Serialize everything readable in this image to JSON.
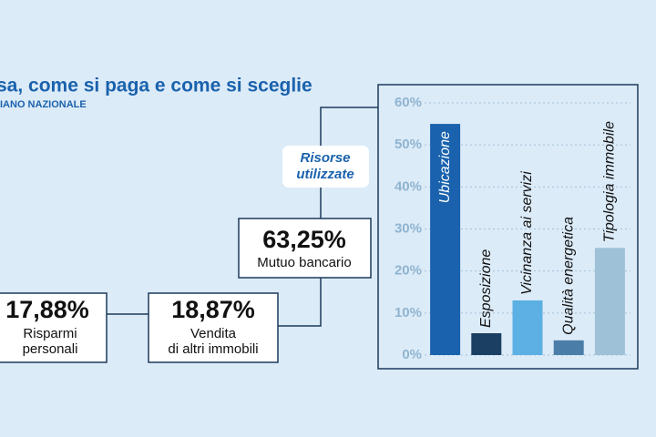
{
  "header": {
    "title": "sa, come si paga e come si sceglie",
    "subtitle": "IANO NAZIONALE"
  },
  "flow": {
    "badge": [
      "Risorse",
      "utilizzate"
    ],
    "boxes": [
      {
        "percent": "17,88%",
        "label": [
          "Risparmi",
          "personali"
        ]
      },
      {
        "percent": "18,87%",
        "label": [
          "Vendita",
          "di altri immobili"
        ]
      },
      {
        "percent": "63,25%",
        "label": [
          "Mutuo bancario"
        ]
      }
    ]
  },
  "chart_data": {
    "type": "bar",
    "categories": [
      "Ubicazione",
      "Esposizione",
      "Vicinanza ai servizi",
      "Qualità energetica",
      "Tipologia immobile"
    ],
    "values": [
      55,
      5.2,
      13,
      3.5,
      25.5
    ],
    "colors": [
      "#1a62ad",
      "#1b3f63",
      "#5cb0e4",
      "#4a7ea8",
      "#9fc1d8"
    ],
    "ylim": [
      0,
      60
    ],
    "yticks": [
      {
        "value": 0,
        "label": "0%"
      },
      {
        "value": 10,
        "label": "10%"
      },
      {
        "value": 20,
        "label": "20%"
      },
      {
        "value": 30,
        "label": "30%"
      },
      {
        "value": 40,
        "label": "40%"
      },
      {
        "value": 50,
        "label": "50%"
      },
      {
        "value": 60,
        "label": "60%"
      }
    ],
    "grid": true
  }
}
